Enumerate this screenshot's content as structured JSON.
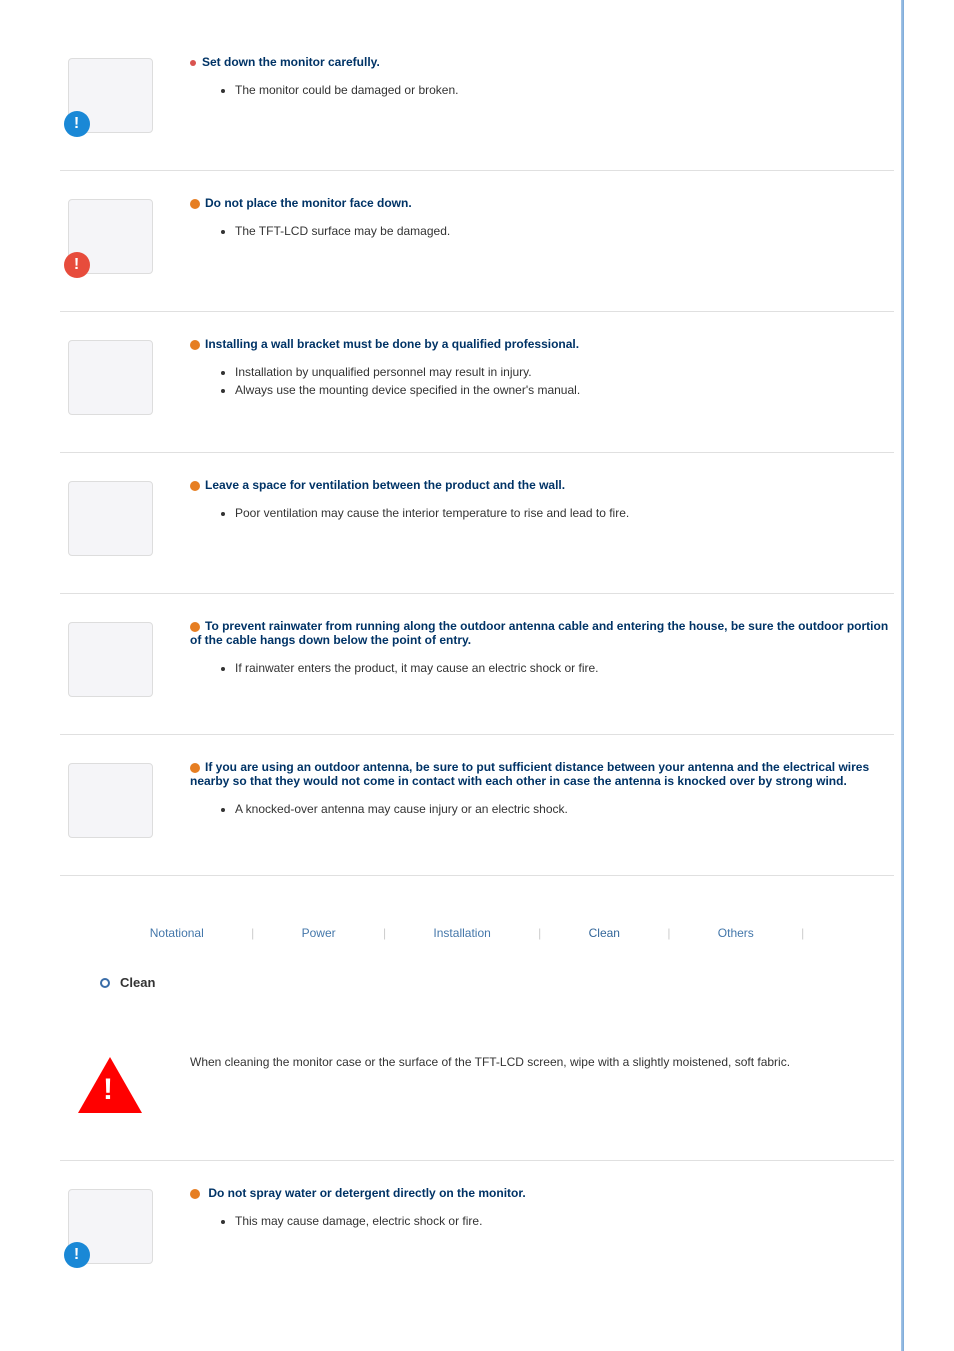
{
  "items": [
    {
      "title": "Set down the monitor carefully.",
      "bullets": [
        "The monitor could be damaged or broken."
      ],
      "badge_color": "#1a88d6",
      "dot_color": "#d9534f"
    },
    {
      "title": "Do not place the monitor face down.",
      "bullets": [
        "The TFT-LCD surface may be damaged."
      ],
      "badge_color": "#1a88d6",
      "badge_red": true,
      "dot_color": "#e67e22"
    },
    {
      "title": "Installing a wall bracket must be done by a qualified professional.",
      "bullets": [
        "Installation by unqualified personnel may result in injury.",
        "Always use the mounting device specified in the owner's manual."
      ],
      "badge_color": "#1a88d6",
      "dot_color": "#e67e22"
    },
    {
      "title": "Leave a space for ventilation between the product and the wall.",
      "bullets": [
        "Poor ventilation may cause the interior temperature to rise and lead to fire."
      ],
      "dot_color": "#e67e22"
    },
    {
      "title": "To prevent rainwater from running along the outdoor antenna cable and entering the house, be sure the outdoor portion of the cable hangs down below the point of entry.",
      "bullets": [
        "If rainwater enters the product, it may cause an electric shock or fire."
      ],
      "dot_color": "#e67e22"
    },
    {
      "title": "If you are using an outdoor antenna, be sure to put sufficient distance between your antenna and the electrical wires nearby so that they would not come in contact with each other in case the antenna is knocked over by strong wind.",
      "bullets": [
        "A knocked-over antenna may cause injury or an electric shock."
      ],
      "dot_color": "#e67e22"
    }
  ],
  "nav": {
    "links": [
      "Notational",
      "Power",
      "Installation",
      "Clean",
      "Others"
    ],
    "active_index": 3,
    "link_color": "#4477aa",
    "active_color": "#336699"
  },
  "section": {
    "title": "Clean"
  },
  "clean_intro": "When cleaning the monitor case or the surface of the TFT-LCD screen, wipe with a slightly moistened, soft fabric.",
  "clean_items": [
    {
      "title": "Do not spray water or detergent directly on the monitor.",
      "bullets": [
        "This may cause damage, electric shock or fire."
      ],
      "badge_color": "#1a88d6",
      "dot_color": "#e67e22"
    }
  ],
  "colors": {
    "title_text": "#003366",
    "body_text": "#333333",
    "divider": "#e0e0e0",
    "page_bg": "#ffffff",
    "right_border": "#7aa8d8"
  },
  "typography": {
    "title_fontsize": 12,
    "body_fontsize": 12,
    "section_title_fontsize": 13
  }
}
